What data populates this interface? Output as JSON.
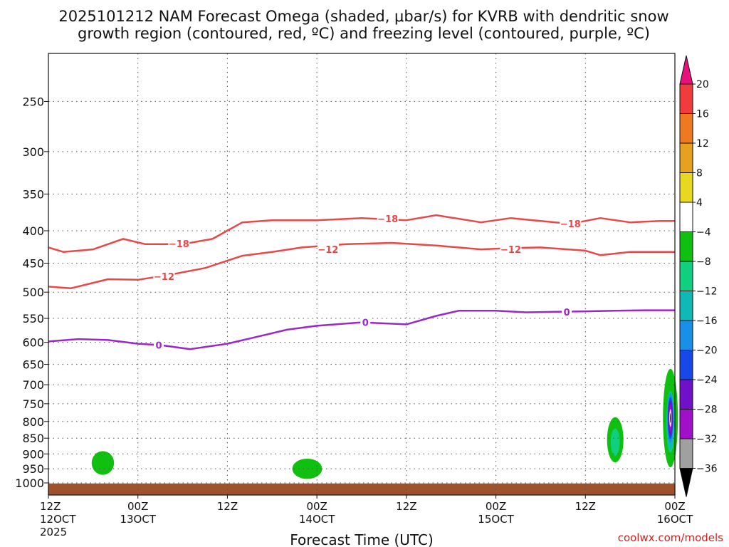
{
  "chart_data": {
    "type": "time-height-section",
    "title_line1": "2025101212 NAM Forecast Omega (shaded, μbar/s) for KVRB with dendritic snow",
    "title_line2": "growth region (contoured, red, ºC) and freezing level (contoured, purple, ºC)",
    "xlabel": "Forecast Time (UTC)",
    "credit": "coolwx.com/models",
    "x_hours_range": [
      0,
      84
    ],
    "y_levels": [
      250,
      300,
      350,
      400,
      450,
      500,
      550,
      600,
      650,
      700,
      750,
      800,
      850,
      900,
      950,
      1000
    ],
    "y_range_hpa": [
      200,
      1030
    ],
    "x_ticks": [
      {
        "hour": 0,
        "line1": "12Z",
        "line2": "12OCT",
        "line3": "2025"
      },
      {
        "hour": 12,
        "line1": "00Z",
        "line2": "13OCT"
      },
      {
        "hour": 24,
        "line1": "12Z"
      },
      {
        "hour": 36,
        "line1": "00Z",
        "line2": "14OCT"
      },
      {
        "hour": 48,
        "line1": "12Z"
      },
      {
        "hour": 60,
        "line1": "00Z",
        "line2": "15OCT"
      },
      {
        "hour": 72,
        "line1": "12Z"
      },
      {
        "hour": 84,
        "line1": "00Z",
        "line2": "16OCT"
      }
    ],
    "colorbar": {
      "labels": [
        "20",
        "16",
        "12",
        "8",
        "4",
        "−4",
        "−8",
        "−12",
        "−16",
        "−20",
        "−24",
        "−28",
        "−32",
        "−36"
      ],
      "colors": [
        "#e8107a",
        "#f03c3c",
        "#f07820",
        "#e8a020",
        "#e8d820",
        "#ffffff",
        "#10c010",
        "#10d080",
        "#10b8b8",
        "#1890e8",
        "#1848e8",
        "#7010c8",
        "#a010c8",
        "#a0a0a0",
        "#000000"
      ]
    },
    "series": [
      {
        "name": "-18C",
        "kind": "dgz",
        "color": "#e84848",
        "label": "−18",
        "points": [
          [
            0,
            425
          ],
          [
            2,
            432
          ],
          [
            6,
            428
          ],
          [
            10,
            412
          ],
          [
            13,
            420
          ],
          [
            18,
            420
          ],
          [
            22,
            412
          ],
          [
            26,
            388
          ],
          [
            30,
            385
          ],
          [
            36,
            385
          ],
          [
            42,
            382
          ],
          [
            48,
            385
          ],
          [
            52,
            378
          ],
          [
            58,
            388
          ],
          [
            62,
            382
          ],
          [
            66,
            386
          ],
          [
            70,
            390
          ],
          [
            74,
            382
          ],
          [
            78,
            388
          ],
          [
            82,
            386
          ],
          [
            84,
            386
          ]
        ],
        "label_at": [
          [
            17.5,
            419
          ],
          [
            45.5,
            383
          ],
          [
            70,
            390
          ]
        ]
      },
      {
        "name": "-12C",
        "kind": "dgz",
        "color": "#e84848",
        "label": "−12",
        "points": [
          [
            0,
            490
          ],
          [
            3,
            493
          ],
          [
            8,
            477
          ],
          [
            12,
            478
          ],
          [
            16,
            470
          ],
          [
            21,
            458
          ],
          [
            26,
            438
          ],
          [
            30,
            432
          ],
          [
            34,
            425
          ],
          [
            40,
            420
          ],
          [
            46,
            418
          ],
          [
            52,
            422
          ],
          [
            58,
            428
          ],
          [
            62,
            426
          ],
          [
            66,
            425
          ],
          [
            72,
            430
          ],
          [
            74,
            437
          ],
          [
            78,
            432
          ],
          [
            84,
            432
          ]
        ],
        "label_at": [
          [
            15.5,
            472
          ],
          [
            37.5,
            428
          ],
          [
            62,
            428
          ]
        ]
      },
      {
        "name": "0C",
        "kind": "freezing",
        "color": "#9a28c8",
        "label": "0",
        "points": [
          [
            0,
            598
          ],
          [
            4,
            593
          ],
          [
            8,
            595
          ],
          [
            12,
            603
          ],
          [
            15,
            606
          ],
          [
            19,
            615
          ],
          [
            24,
            603
          ],
          [
            28,
            588
          ],
          [
            32,
            573
          ],
          [
            36,
            565
          ],
          [
            42,
            558
          ],
          [
            48,
            562
          ],
          [
            52,
            545
          ],
          [
            55,
            535
          ],
          [
            60,
            535
          ],
          [
            64,
            538
          ],
          [
            68,
            537
          ],
          [
            72,
            536
          ],
          [
            76,
            535
          ],
          [
            80,
            534
          ],
          [
            84,
            534
          ]
        ],
        "label_at": [
          [
            14.8,
            606
          ],
          [
            42.5,
            558
          ],
          [
            69.5,
            537
          ]
        ]
      }
    ],
    "omega_blobs": [
      {
        "x_hour": 7.3,
        "p_hpa": 930,
        "dx_hours": 1.5,
        "dp_hpa": 40,
        "min_value": -6
      },
      {
        "x_hour": 34.7,
        "p_hpa": 950,
        "dx_hours": 2.0,
        "dp_hpa": 35,
        "min_value": -6
      },
      {
        "x_hour": 76.0,
        "p_hpa": 855,
        "dx_hours": 1.1,
        "dp_hpa": 70,
        "min_value": -10
      },
      {
        "x_hour": 83.4,
        "p_hpa": 790,
        "dx_hours": 1.0,
        "dp_hpa": 140,
        "min_value": -36
      }
    ],
    "terrain_color": "#a0522d"
  }
}
